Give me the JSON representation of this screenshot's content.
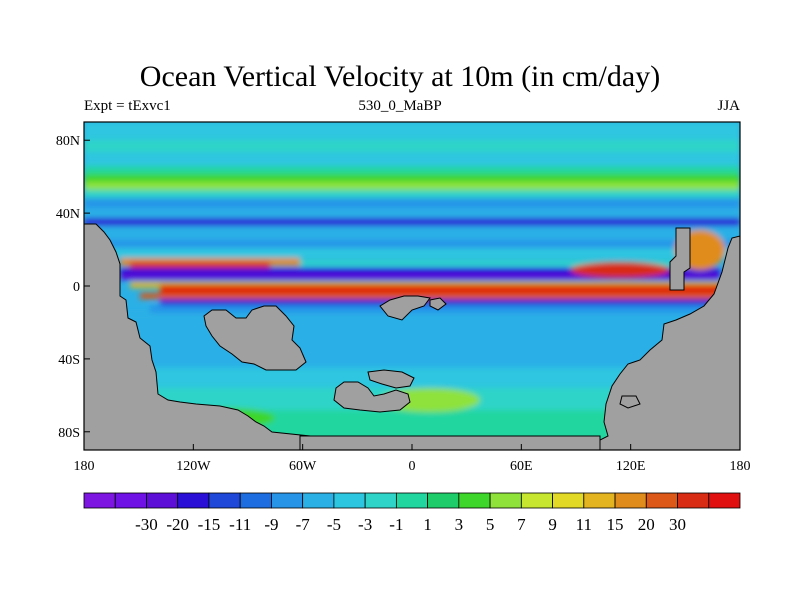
{
  "title": "Ocean Vertical Velocity at 10m (in cm/day)",
  "left_label": "Expt = tExvc1",
  "center_label": "530_0_MaBP",
  "right_label": "JJA",
  "lon_ticks": [
    {
      "value": -180,
      "label": "180"
    },
    {
      "value": -120,
      "label": "120W"
    },
    {
      "value": -60,
      "label": "60W"
    },
    {
      "value": 0,
      "label": "0"
    },
    {
      "value": 60,
      "label": "60E"
    },
    {
      "value": 120,
      "label": "120E"
    },
    {
      "value": 180,
      "label": "180"
    }
  ],
  "lat_ticks": [
    {
      "value": 80,
      "label": "80N"
    },
    {
      "value": 40,
      "label": "40N"
    },
    {
      "value": 0,
      "label": "0"
    },
    {
      "value": -40,
      "label": "40S"
    },
    {
      "value": -80,
      "label": "80S"
    }
  ],
  "colorbar": {
    "colors": [
      "#7d16e0",
      "#6f12e6",
      "#5d0fd8",
      "#2a10d6",
      "#1f48d8",
      "#1d6de0",
      "#2894e8",
      "#2bb0e6",
      "#2dc6e0",
      "#2fd4c8",
      "#22d6a0",
      "#1ecd6a",
      "#3ed62a",
      "#8fe23a",
      "#c6e630",
      "#e2d826",
      "#e4b420",
      "#e08c1c",
      "#dc5818",
      "#d82c14",
      "#e01010"
    ],
    "labels": [
      "-30",
      "-20",
      "-15",
      "-11",
      "-9",
      "-7",
      "-5",
      "-3",
      "-1",
      "1",
      "3",
      "5",
      "7",
      "9",
      "11",
      "15",
      "20",
      "30"
    ]
  },
  "colors": {
    "land": "#a0a0a0",
    "ocean_base": "#2bb0e6"
  },
  "chart_data": {
    "type": "heatmap",
    "title": "Ocean Vertical Velocity at 10m (in cm/day)",
    "xlim": [
      -180,
      180
    ],
    "ylim": [
      -90,
      90
    ],
    "units": "cm/day",
    "levels": [
      -30,
      -20,
      -15,
      -11,
      -9,
      -7,
      -5,
      -3,
      -1,
      1,
      3,
      5,
      7,
      9,
      11,
      15,
      20,
      30
    ],
    "zonal_bands": [
      {
        "lat_range": [
          72,
          90
        ],
        "value": -1
      },
      {
        "lat_range": [
          66,
          72
        ],
        "value": 1
      },
      {
        "lat_range": [
          52,
          60
        ],
        "value": 5
      },
      {
        "lat_range": [
          42,
          48
        ],
        "value": -5
      },
      {
        "lat_range": [
          36,
          40
        ],
        "value": -11
      },
      {
        "lat_range": [
          28,
          32
        ],
        "value": -3
      },
      {
        "lat_range": [
          8,
          12
        ],
        "value": -9
      },
      {
        "lat_range": [
          2,
          6
        ],
        "value": -30
      },
      {
        "lat_range": [
          -3,
          1
        ],
        "value": 30
      },
      {
        "lat_range": [
          -5,
          -3
        ],
        "value": 11
      },
      {
        "lat_range": [
          -40,
          -10
        ],
        "value": -3
      },
      {
        "lat_range": [
          -70,
          -50
        ],
        "value": 1
      }
    ]
  }
}
